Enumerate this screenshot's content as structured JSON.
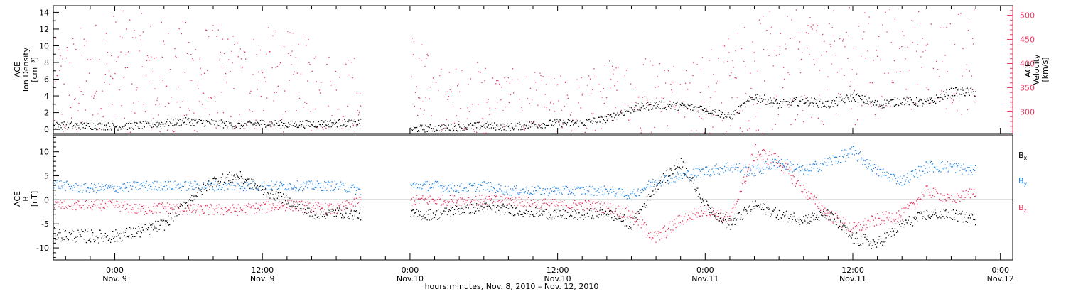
{
  "colors": {
    "black": "#000000",
    "pink": "#e8355f",
    "blue": "#1f84e6"
  },
  "x_axis": {
    "title": "hours:minutes, Nov. 8, 2010 – Nov. 12, 2010",
    "ticks": [
      {
        "hours": 0,
        "time": "0:00",
        "date": "Nov. 9"
      },
      {
        "hours": 12,
        "time": "12:00",
        "date": "Nov. 9"
      },
      {
        "hours": 24,
        "time": "0:00",
        "date": "Nov.10"
      },
      {
        "hours": 36,
        "time": "12:00",
        "date": "Nov.10"
      },
      {
        "hours": 48,
        "time": "0:00",
        "date": "Nov.11"
      },
      {
        "hours": 60,
        "time": "12:00",
        "date": "Nov.11"
      },
      {
        "hours": 72,
        "time": "0:00",
        "date": "Nov.12"
      }
    ],
    "xlim": [
      -5,
      73
    ]
  },
  "chart_data": [
    {
      "type": "scatter",
      "panel": "top",
      "left_axis": {
        "label_lines": [
          "ACE",
          "Ion Density",
          "[cm⁻³]"
        ],
        "ylim": [
          -0.5,
          14.8
        ],
        "ticks": [
          0,
          2,
          4,
          6,
          8,
          10,
          12,
          14
        ]
      },
      "right_axis": {
        "label_lines": [
          "ACE",
          "Velocity",
          "[km/s]"
        ],
        "ylim": [
          255,
          520
        ],
        "ticks": [
          300,
          350,
          400,
          450,
          500
        ]
      },
      "x": [
        -5,
        -3,
        0,
        2,
        4,
        6,
        8,
        10,
        12,
        14,
        16,
        18,
        20,
        22,
        24,
        26,
        28,
        30,
        32,
        34,
        36,
        38,
        40,
        42,
        44,
        46,
        48,
        50,
        52,
        54,
        56,
        58,
        60,
        62,
        64,
        66,
        68,
        70
      ],
      "series": [
        {
          "axis": "left",
          "color": "black",
          "values": [
            0.5,
            0.5,
            0.4,
            0.5,
            0.8,
            1.0,
            0.8,
            0.5,
            0.8,
            0.6,
            0.7,
            0.8,
            0.8,
            null,
            0.1,
            0.2,
            0.3,
            0.5,
            0.3,
            0.6,
            0.8,
            0.8,
            1.3,
            2.5,
            3.0,
            2.8,
            2.5,
            1.5,
            4.0,
            3.0,
            3.5,
            3.0,
            4.0,
            3.0,
            3.5,
            3.2,
            4.5,
            4.5
          ]
        },
        {
          "axis": "right",
          "color": "pink",
          "values": [
            330,
            350,
            375,
            370,
            360,
            360,
            355,
            340,
            350,
            345,
            330,
            310,
            305,
            null,
            360,
            290,
            290,
            300,
            285,
            280,
            275,
            280,
            300,
            310,
            310,
            305,
            310,
            340,
            380,
            400,
            425,
            430,
            430,
            450,
            455,
            460,
            470,
            450
          ]
        }
      ]
    },
    {
      "type": "scatter",
      "panel": "bottom",
      "left_axis": {
        "label_lines": [
          "ACE",
          "B",
          "[nT]"
        ],
        "ylim": [
          -12.5,
          13.5
        ],
        "ticks": [
          -10,
          -5,
          0,
          5,
          10
        ]
      },
      "legend": [
        "Bx",
        "By",
        "Bz"
      ],
      "x": [
        -5,
        -3,
        0,
        2,
        4,
        6,
        8,
        10,
        12,
        14,
        16,
        18,
        20,
        22,
        24,
        26,
        28,
        30,
        32,
        34,
        36,
        38,
        40,
        42,
        44,
        46,
        48,
        50,
        52,
        54,
        56,
        58,
        60,
        62,
        64,
        66,
        68,
        70
      ],
      "series": [
        {
          "name": "Bx",
          "color": "black",
          "values": [
            -7,
            -7.5,
            -7.5,
            -6.5,
            -5,
            0,
            4,
            5,
            2,
            0,
            -3,
            -2.5,
            -3,
            null,
            -3,
            -3,
            -2,
            -1.5,
            -2,
            -2.5,
            -3,
            -3,
            -2.5,
            -5,
            3,
            8,
            -1,
            -5,
            -1,
            -3,
            -4,
            -3,
            -8,
            -9,
            -5,
            -3,
            -3,
            -4
          ]
        },
        {
          "name": "By",
          "color": "blue",
          "values": [
            3.5,
            2.5,
            2.5,
            3,
            3,
            3,
            3,
            3,
            3,
            3,
            3,
            3,
            2,
            null,
            3,
            3,
            2.5,
            3,
            2,
            2,
            2,
            2,
            2,
            1,
            4,
            5,
            6,
            7,
            6,
            8,
            6,
            8,
            10,
            6,
            4,
            7,
            7,
            6
          ]
        },
        {
          "name": "Bz",
          "color": "pink",
          "values": [
            -1,
            -1,
            -1,
            -2,
            -1.5,
            -2,
            -2,
            -2,
            -1.5,
            -1,
            -1.5,
            -2,
            0,
            null,
            0,
            0,
            0,
            0,
            0,
            -0.5,
            -1,
            -1,
            -1.5,
            -3,
            -8,
            -4,
            -2,
            -4,
            10,
            8,
            2,
            -3,
            -6,
            -4,
            -3,
            2,
            0,
            2
          ]
        }
      ]
    }
  ]
}
